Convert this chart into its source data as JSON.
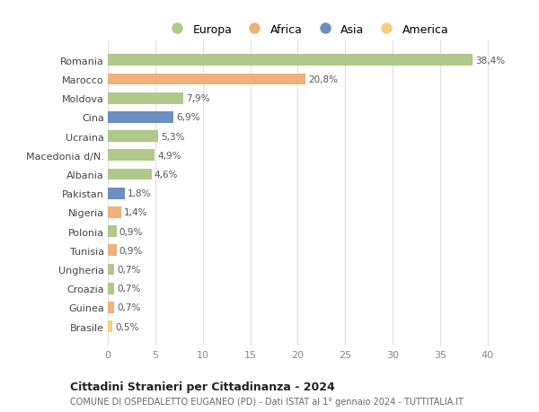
{
  "categories": [
    "Romania",
    "Marocco",
    "Moldova",
    "Cina",
    "Ucraina",
    "Macedonia d/N.",
    "Albania",
    "Pakistan",
    "Nigeria",
    "Polonia",
    "Tunisia",
    "Ungheria",
    "Croazia",
    "Guinea",
    "Brasile"
  ],
  "values": [
    38.4,
    20.8,
    7.9,
    6.9,
    5.3,
    4.9,
    4.6,
    1.8,
    1.4,
    0.9,
    0.9,
    0.7,
    0.7,
    0.7,
    0.5
  ],
  "labels": [
    "38,4%",
    "20,8%",
    "7,9%",
    "6,9%",
    "5,3%",
    "4,9%",
    "4,6%",
    "1,8%",
    "1,4%",
    "0,9%",
    "0,9%",
    "0,7%",
    "0,7%",
    "0,7%",
    "0,5%"
  ],
  "colors": [
    "#aec98a",
    "#f0b07a",
    "#aec98a",
    "#6b8fc2",
    "#aec98a",
    "#aec98a",
    "#aec98a",
    "#6b8fc2",
    "#f0b07a",
    "#aec98a",
    "#f0b07a",
    "#aec98a",
    "#aec98a",
    "#f0b07a",
    "#f5d07a"
  ],
  "legend_labels": [
    "Europa",
    "Africa",
    "Asia",
    "America"
  ],
  "legend_colors": [
    "#aec98a",
    "#f0b07a",
    "#6b8fc2",
    "#f5d07a"
  ],
  "title": "Cittadini Stranieri per Cittadinanza - 2024",
  "subtitle": "COMUNE DI OSPEDALETTO EUGANEO (PD) - Dati ISTAT al 1° gennaio 2024 - TUTTITALIA.IT",
  "xlim": [
    0,
    42
  ],
  "xticks": [
    0,
    5,
    10,
    15,
    20,
    25,
    30,
    35,
    40
  ],
  "background_color": "#ffffff",
  "grid_color": "#e0e0e0",
  "bar_height": 0.6
}
